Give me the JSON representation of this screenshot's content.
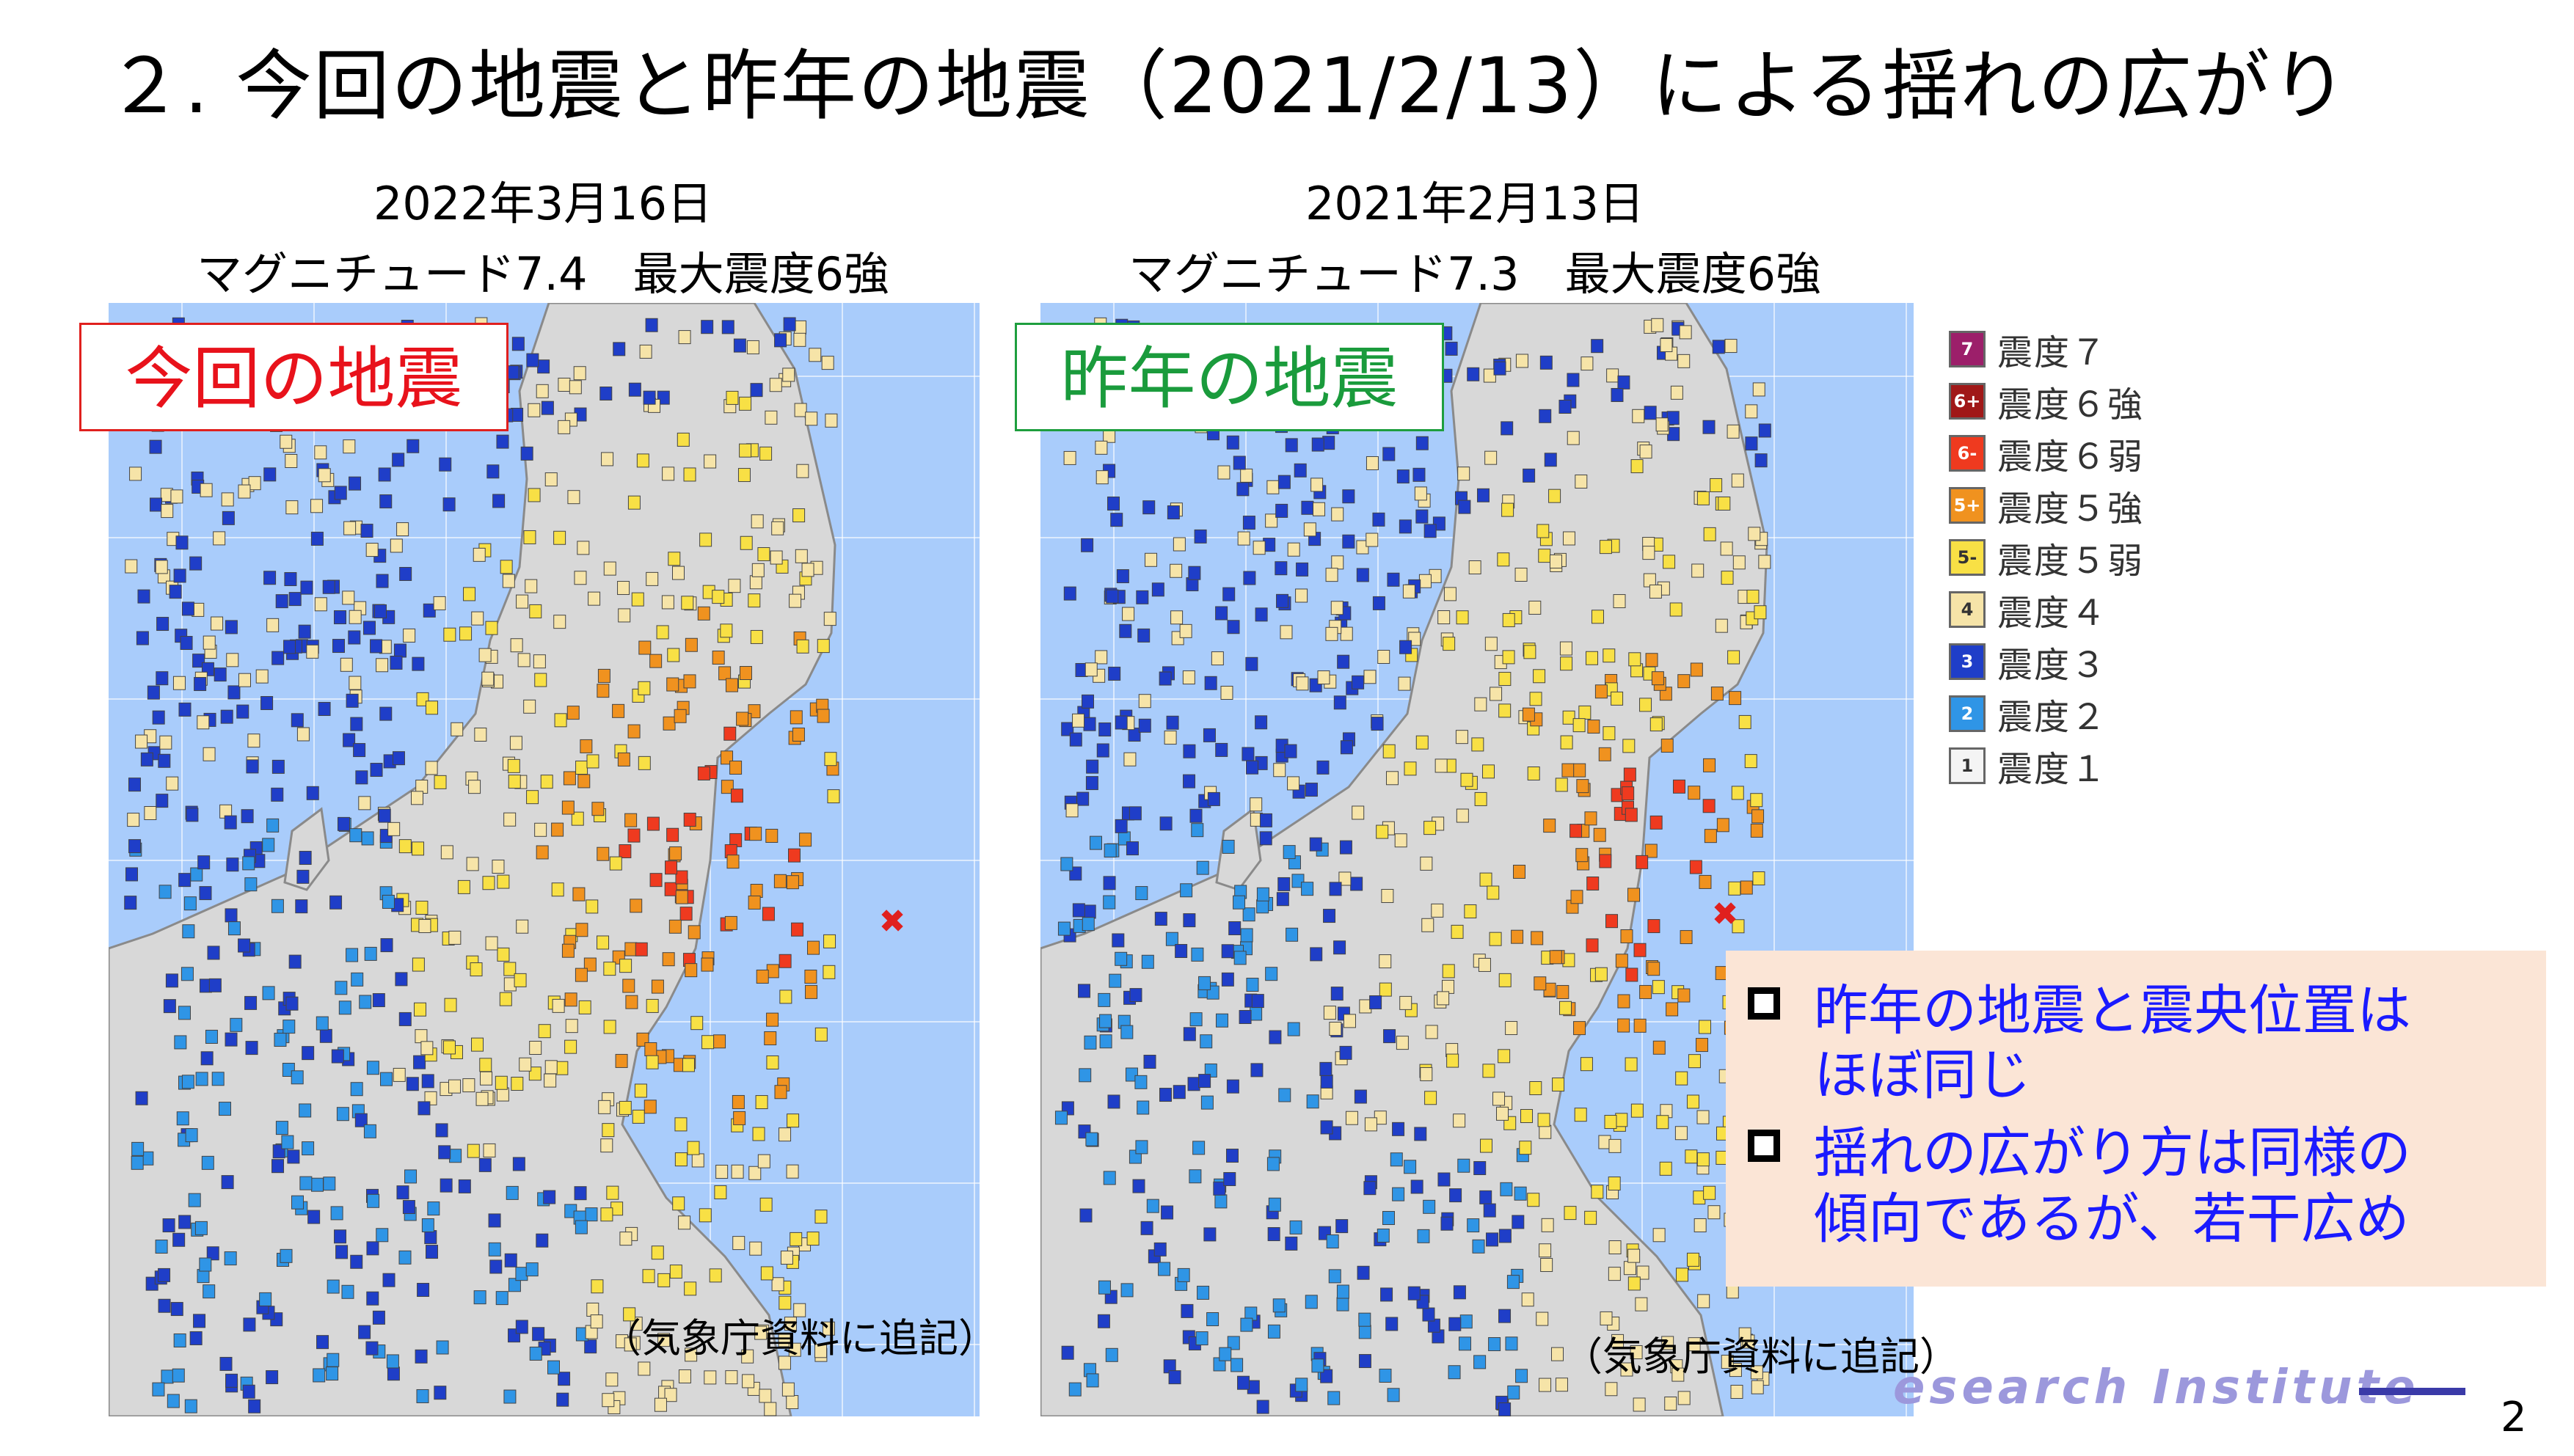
{
  "slide": {
    "title": "２. 今回の地震と昨年の地震（2021/2/13）による揺れの広がり",
    "page_number": "2",
    "footer_brand": "esearch  Institute"
  },
  "left_panel": {
    "date": "2022年3月16日",
    "magnitude_line": "マグニチュード7.4　最大震度6強",
    "label": "今回の地震",
    "credit": "（気象庁資料に追記）"
  },
  "right_panel": {
    "date": "2021年2月13日",
    "magnitude_line": "マグニチュード7.3　最大震度6強",
    "label": "昨年の地震",
    "credit": "（気象庁資料に追記）"
  },
  "legend": [
    {
      "code": "7",
      "label": "震度７",
      "color": "#9c1f6a",
      "text_color": "#ffffff"
    },
    {
      "code": "6+",
      "label": "震度６強",
      "color": "#a01818",
      "text_color": "#ffffff"
    },
    {
      "code": "6-",
      "label": "震度６弱",
      "color": "#ef3a1f",
      "text_color": "#ffffff"
    },
    {
      "code": "5+",
      "label": "震度５強",
      "color": "#f0921f",
      "text_color": "#ffffff"
    },
    {
      "code": "5-",
      "label": "震度５弱",
      "color": "#f8e045",
      "text_color": "#333333"
    },
    {
      "code": "4",
      "label": "震度４",
      "color": "#f6e4a8",
      "text_color": "#333333"
    },
    {
      "code": "3",
      "label": "震度３",
      "color": "#1f3ec8",
      "text_color": "#ffffff"
    },
    {
      "code": "2",
      "label": "震度２",
      "color": "#2f95e6",
      "text_color": "#ffffff"
    },
    {
      "code": "1",
      "label": "震度１",
      "color": "#f4f4f4",
      "text_color": "#333333"
    }
  ],
  "notes": [
    "昨年の地震と震央位置は",
    "ほぼ同じ",
    "揺れの広がり方は同様の",
    "傾向であるが、若干広め"
  ],
  "colors": {
    "sea": "#a9ccfb",
    "land": "#d8d8d8",
    "epicenter": "#e0201e",
    "label_current": "#e8121b",
    "label_previous": "#1a9b3c",
    "notes_bg": "#fbe5d6",
    "notes_text": "#1a1aff"
  }
}
